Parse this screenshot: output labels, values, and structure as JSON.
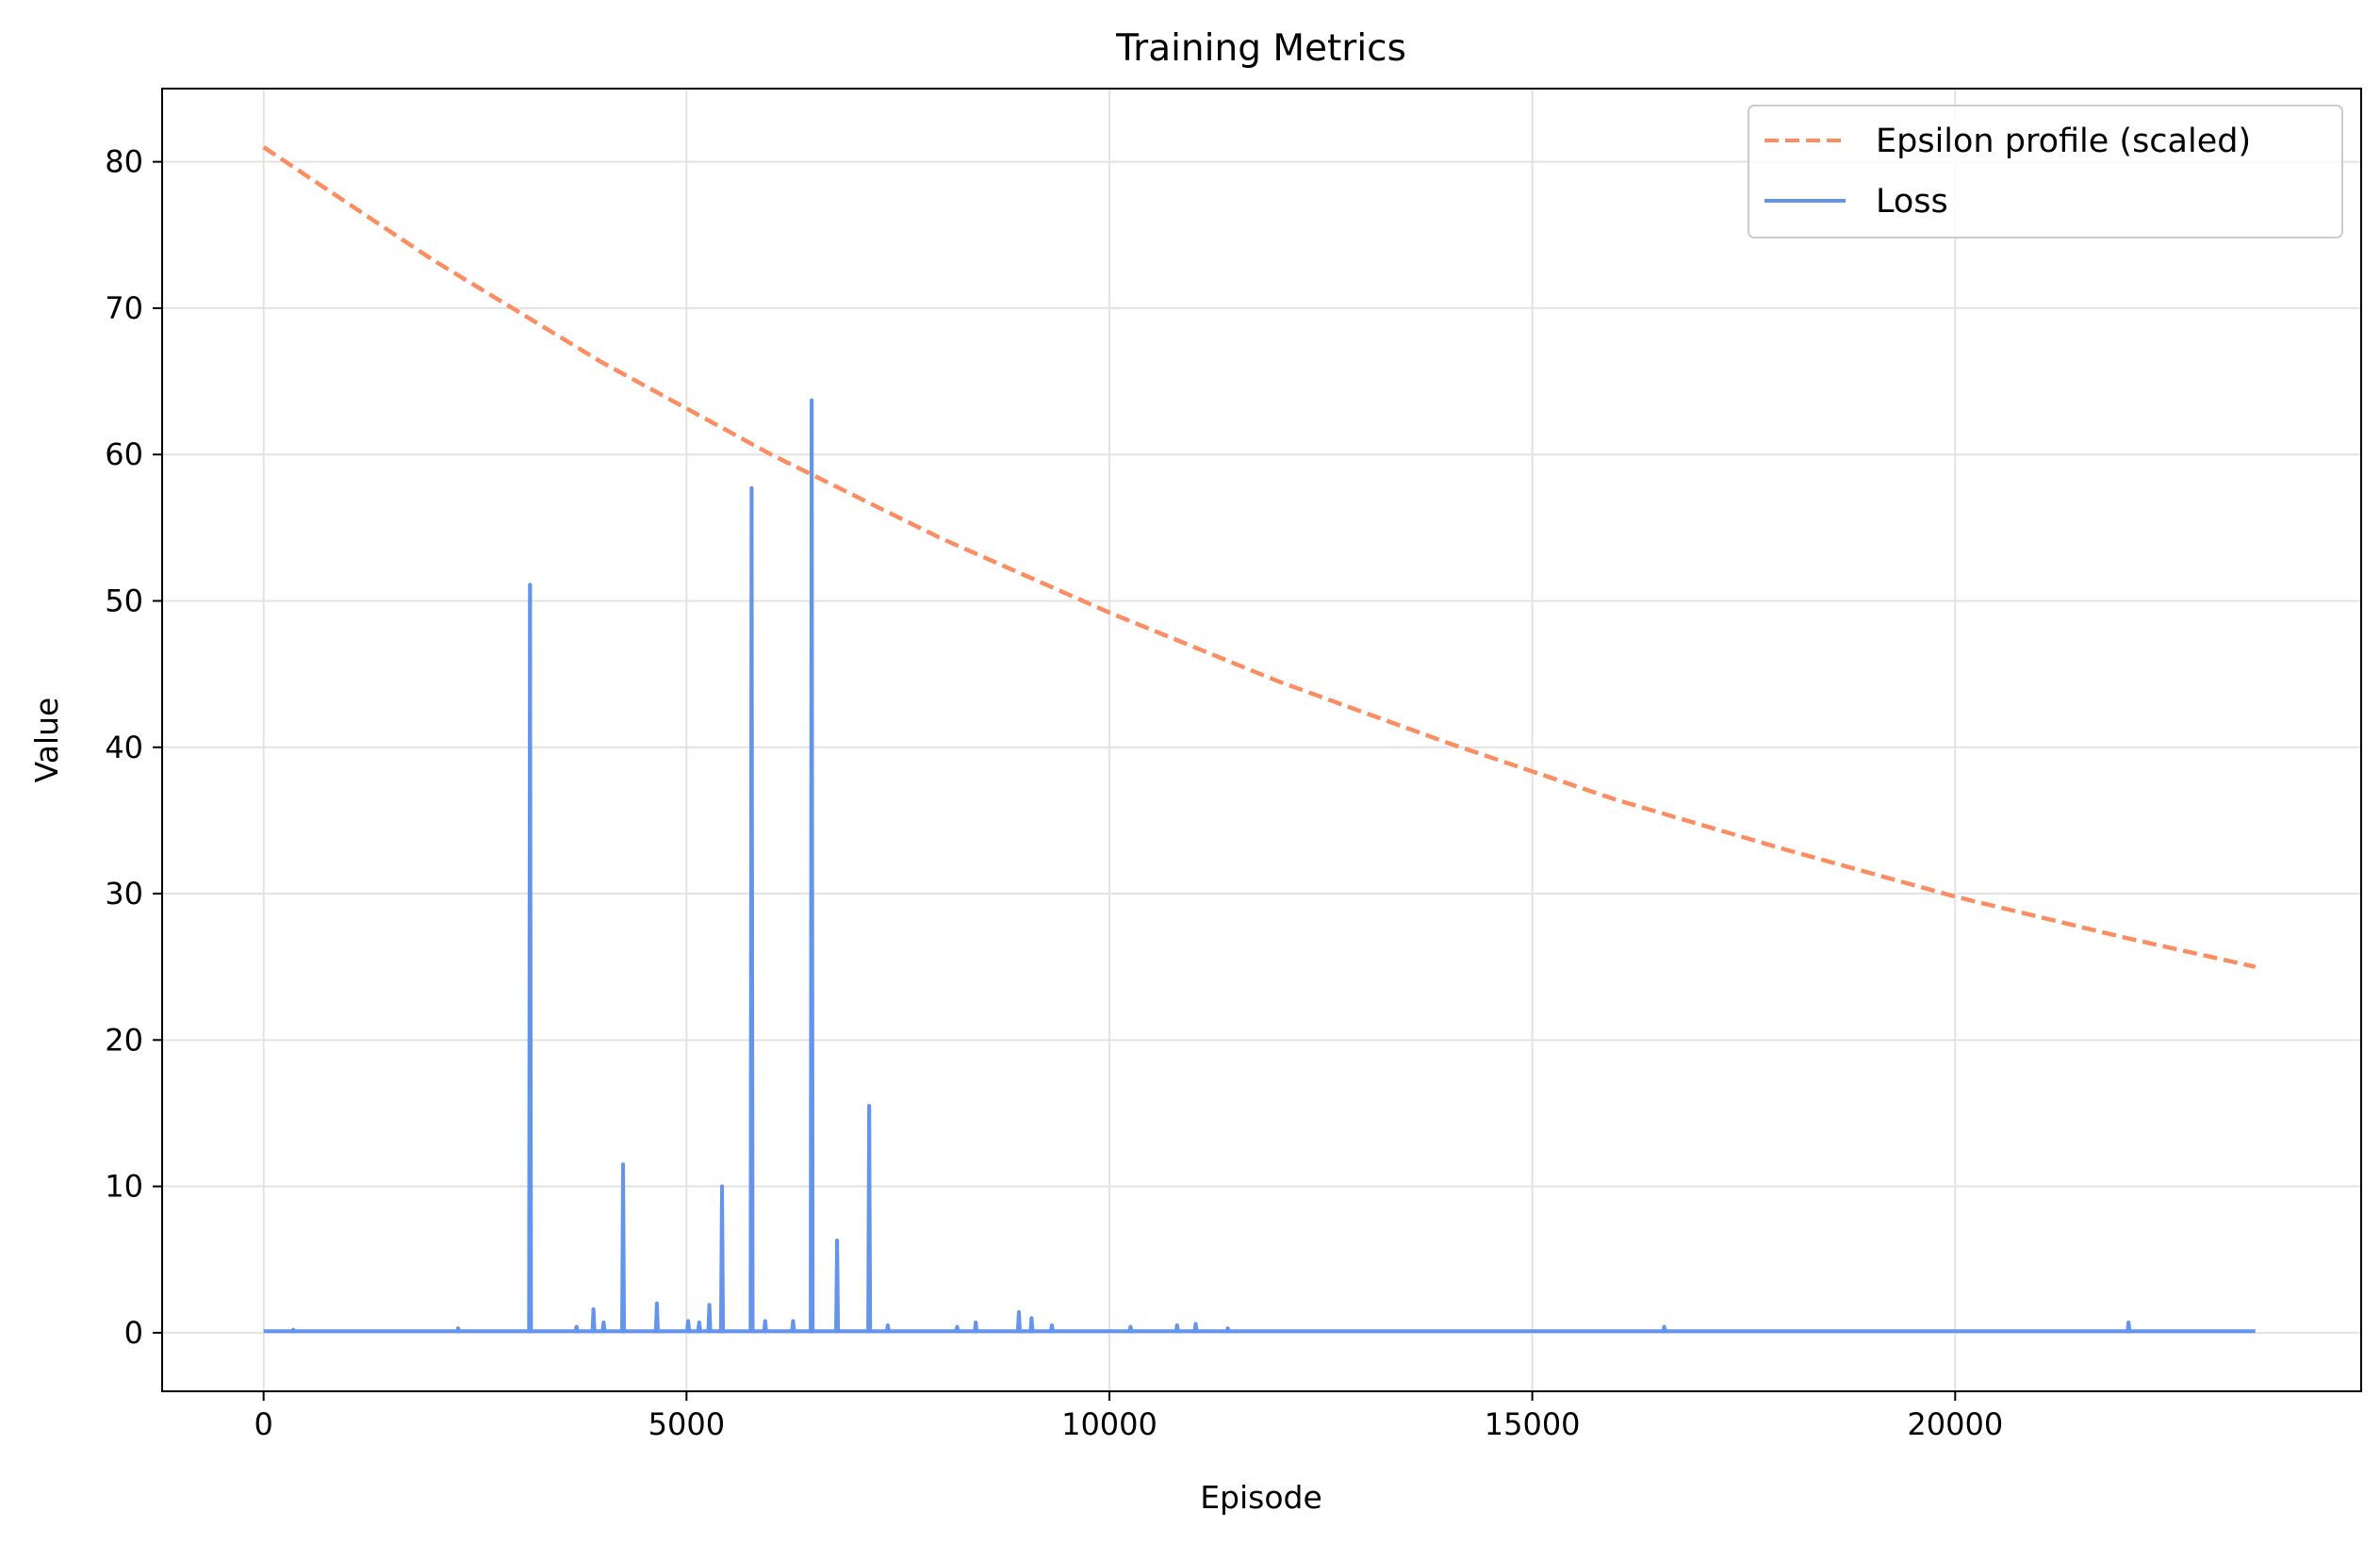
{
  "chart_data": {
    "type": "line",
    "title": "Training Metrics",
    "xlabel": "Episode",
    "ylabel": "Value",
    "xlim": [
      -1200,
      24800
    ],
    "ylim": [
      -4,
      85
    ],
    "xticks": [
      0,
      5000,
      10000,
      15000,
      20000
    ],
    "xtick_labels": [
      "0",
      "5000",
      "10000",
      "15000",
      "20000"
    ],
    "yticks": [
      0,
      10,
      20,
      30,
      40,
      50,
      60,
      70,
      80
    ],
    "ytick_labels": [
      "0",
      "10",
      "20",
      "30",
      "40",
      "50",
      "60",
      "70",
      "80"
    ],
    "grid": true,
    "legend_position": "top-right",
    "series": [
      {
        "name": "Epsilon profile (scaled)",
        "color": "#fc8d62",
        "style": "dashed",
        "x": [
          0,
          2000,
          4000,
          6000,
          8000,
          10000,
          12000,
          14000,
          16000,
          18000,
          20000,
          22000,
          23550
        ],
        "values": [
          81,
          73.3,
          66.3,
          60,
          54.3,
          49.2,
          44.5,
          40.3,
          36.4,
          33,
          29.8,
          27,
          25
        ]
      },
      {
        "name": "Loss",
        "color": "#6495ed",
        "style": "solid",
        "baseline": 0.1,
        "x_end": 23550,
        "spikes": [
          {
            "x": 350,
            "value": 0.2
          },
          {
            "x": 2300,
            "value": 0.3
          },
          {
            "x": 3150,
            "value": 51.1
          },
          {
            "x": 3700,
            "value": 0.4
          },
          {
            "x": 3900,
            "value": 1.6
          },
          {
            "x": 4020,
            "value": 0.7
          },
          {
            "x": 4250,
            "value": 11.5
          },
          {
            "x": 4650,
            "value": 2.0
          },
          {
            "x": 5020,
            "value": 0.8
          },
          {
            "x": 5150,
            "value": 0.7
          },
          {
            "x": 5270,
            "value": 1.9
          },
          {
            "x": 5420,
            "value": 10.0
          },
          {
            "x": 5770,
            "value": 57.7
          },
          {
            "x": 5930,
            "value": 0.8
          },
          {
            "x": 6260,
            "value": 0.8
          },
          {
            "x": 6480,
            "value": 63.7
          },
          {
            "x": 6780,
            "value": 6.3
          },
          {
            "x": 7160,
            "value": 15.5
          },
          {
            "x": 7380,
            "value": 0.5
          },
          {
            "x": 8200,
            "value": 0.4
          },
          {
            "x": 8420,
            "value": 0.7
          },
          {
            "x": 8930,
            "value": 1.4
          },
          {
            "x": 9080,
            "value": 1.0
          },
          {
            "x": 9320,
            "value": 0.5
          },
          {
            "x": 10250,
            "value": 0.4
          },
          {
            "x": 10800,
            "value": 0.5
          },
          {
            "x": 11020,
            "value": 0.6
          },
          {
            "x": 11400,
            "value": 0.3
          },
          {
            "x": 16560,
            "value": 0.4
          },
          {
            "x": 22050,
            "value": 0.7
          }
        ]
      }
    ]
  }
}
